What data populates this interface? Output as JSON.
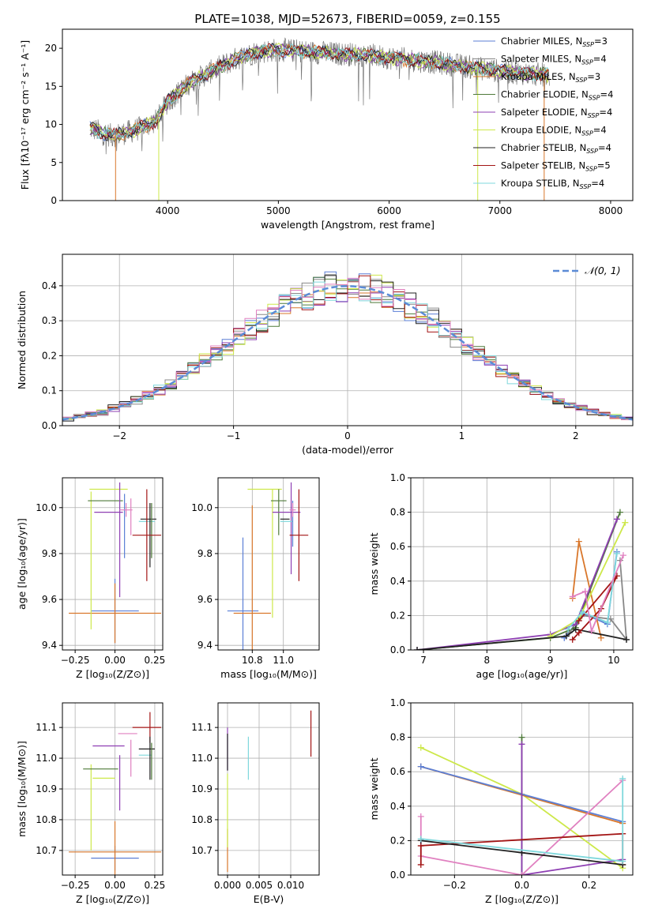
{
  "figure": {
    "title": "PLATE=1038, MJD=52673, FIBERID=0059, z=0.155",
    "model_colors": {
      "Chabrier MILES": "#5b7fd6",
      "Salpeter MILES": "#888888",
      "Kroupa MILES": "#d9772b",
      "Chabrier ELODIE": "#4f7a3a",
      "Salpeter ELODIE": "#8e3fb3",
      "Kroupa ELODIE": "#cde84a",
      "Chabrier STELIB": "#222222",
      "Salpeter STELIB": "#a31515",
      "Kroupa STELIB": "#7fd8dc",
      "Extra": "#e080c0"
    }
  },
  "chart_data": [
    {
      "id": "spectrum",
      "type": "line",
      "xlabel": "wavelength [Angstrom, rest frame]",
      "ylabel": "Flux [fλ10⁻¹⁷ erg cm⁻² s⁻¹ A⁻¹]",
      "xlim": [
        3050,
        8200
      ],
      "ylim": [
        0,
        22.5
      ],
      "xticks": [
        4000,
        5000,
        6000,
        7000,
        8000
      ],
      "yticks": [
        0,
        5,
        10,
        15,
        20
      ],
      "grid": false,
      "legend_position": "upper right",
      "continuum": [
        [
          3300,
          9.5
        ],
        [
          3500,
          8.5
        ],
        [
          3700,
          9.2
        ],
        [
          3900,
          10.5
        ],
        [
          4000,
          13.0
        ],
        [
          4200,
          15.5
        ],
        [
          4400,
          17.0
        ],
        [
          4600,
          18.5
        ],
        [
          4800,
          19.5
        ],
        [
          5000,
          19.8
        ],
        [
          5200,
          19.6
        ],
        [
          5500,
          19.3
        ],
        [
          5800,
          19.1
        ],
        [
          6100,
          18.6
        ],
        [
          6400,
          18.2
        ],
        [
          6700,
          17.6
        ],
        [
          7000,
          17.0
        ],
        [
          7300,
          16.6
        ],
        [
          7450,
          16.5
        ]
      ],
      "data_range": [
        3300,
        7450
      ],
      "series": [
        {
          "name": "Chabrier MILES, N",
          "sub": "SSP",
          "suffix": "=3",
          "color_key": "Chabrier MILES"
        },
        {
          "name": "Salpeter MILES, N",
          "sub": "SSP",
          "suffix": "=4",
          "color_key": "Salpeter MILES"
        },
        {
          "name": "Kroupa MILES, N",
          "sub": "SSP",
          "suffix": "=3",
          "color_key": "Kroupa MILES"
        },
        {
          "name": "Chabrier ELODIE, N",
          "sub": "SSP",
          "suffix": "=4",
          "color_key": "Chabrier ELODIE"
        },
        {
          "name": "Salpeter ELODIE, N",
          "sub": "SSP",
          "suffix": "=4",
          "color_key": "Salpeter ELODIE"
        },
        {
          "name": "Kroupa ELODIE, N",
          "sub": "SSP",
          "suffix": "=4",
          "color_key": "Kroupa ELODIE"
        },
        {
          "name": "Chabrier STELIB, N",
          "sub": "SSP",
          "suffix": "=4",
          "color_key": "Chabrier STELIB"
        },
        {
          "name": "Salpeter STELIB, N",
          "sub": "SSP",
          "suffix": "=5",
          "color_key": "Salpeter STELIB"
        },
        {
          "name": "Kroupa STELIB, N",
          "sub": "SSP",
          "suffix": "=4",
          "color_key": "Kroupa STELIB"
        }
      ]
    },
    {
      "id": "residuals",
      "type": "line",
      "xlabel": "(data-model)/error",
      "ylabel": "Normed distribution",
      "xlim": [
        -2.5,
        2.5
      ],
      "ylim": [
        0,
        0.49
      ],
      "xticks": [
        -2,
        -1,
        0,
        1,
        2
      ],
      "yticks": [
        0.0,
        0.1,
        0.2,
        0.3,
        0.4
      ],
      "grid": true,
      "legend": "𝒩(0, 1)",
      "legend_position": "upper right",
      "bin_width": 0.1
    },
    {
      "id": "Z_age",
      "type": "scatter",
      "xlabel": "Z [log₁₀(Z/Z⊙)]",
      "ylabel": "age  [log₁₀(age/yr)]",
      "xlim": [
        -0.33,
        0.3
      ],
      "ylim": [
        9.38,
        10.13
      ],
      "xticks": [
        -0.25,
        0.0,
        0.25
      ],
      "yticks": [
        9.4,
        9.6,
        9.8,
        10.0
      ],
      "grid": true,
      "points": [
        {
          "c": "Chabrier MILES",
          "x": 0.0,
          "xerr": 0.15,
          "y": 9.55,
          "yerr": 0.14
        },
        {
          "c": "Kroupa MILES",
          "x": 0.0,
          "xerr": 0.29,
          "y": 9.54,
          "yerr": 0.13
        },
        {
          "c": "Kroupa ELODIE",
          "x": -0.15,
          "xerr": 0.0,
          "y": 9.77,
          "yerr": 0.3
        },
        {
          "c": "Kroupa ELODIE",
          "x": -0.04,
          "xerr": 0.12,
          "y": 10.08,
          "yerr": 0.0
        },
        {
          "c": "Chabrier ELODIE",
          "x": -0.06,
          "xerr": 0.11,
          "y": 10.03,
          "yerr": 0.0
        },
        {
          "c": "Salpeter ELODIE",
          "x": 0.03,
          "xerr": 0.0,
          "y": 9.86,
          "yerr": 0.25
        },
        {
          "c": "Salpeter ELODIE",
          "x": -0.04,
          "xerr": 0.09,
          "y": 9.98,
          "yerr": 0.0
        },
        {
          "c": "Chabrier MILES",
          "x": 0.06,
          "xerr": 0.0,
          "y": 9.92,
          "yerr": 0.14
        },
        {
          "c": "Extra",
          "x": 0.07,
          "xerr": 0.04,
          "y": 9.99,
          "yerr": 0.03
        },
        {
          "c": "Extra",
          "x": 0.1,
          "xerr": 0.0,
          "y": 9.96,
          "yerr": 0.08
        },
        {
          "c": "Chabrier STELIB",
          "x": 0.21,
          "xerr": 0.05,
          "y": 9.95,
          "yerr": 0.0
        },
        {
          "c": "Kroupa STELIB",
          "x": 0.2,
          "xerr": 0.05,
          "y": 9.94,
          "yerr": 0.0
        },
        {
          "c": "Chabrier STELIB",
          "x": 0.22,
          "xerr": 0.0,
          "y": 9.88,
          "yerr": 0.14
        },
        {
          "c": "Chabrier ELODIE",
          "x": 0.23,
          "xerr": 0.0,
          "y": 9.9,
          "yerr": 0.12
        },
        {
          "c": "Salpeter STELIB",
          "x": 0.2,
          "xerr": 0.09,
          "y": 9.88,
          "yerr": 0.2
        }
      ]
    },
    {
      "id": "mass_age",
      "type": "scatter",
      "xlabel": "mass [log₁₀(M/M⊙)]",
      "ylabel": "",
      "xlim": [
        10.58,
        11.23
      ],
      "ylim": [
        9.38,
        10.13
      ],
      "xticks": [
        10.8,
        11.0
      ],
      "yticks": [
        9.4,
        9.6,
        9.8,
        10.0
      ],
      "grid": true,
      "points": [
        {
          "c": "Chabrier MILES",
          "x": 10.74,
          "xerr": 0.1,
          "y": 9.55,
          "yerr": 0.32
        },
        {
          "c": "Kroupa MILES",
          "x": 10.8,
          "xerr": 0.12,
          "y": 9.54,
          "yerr": 0.47
        },
        {
          "c": "Kroupa ELODIE",
          "x": 10.93,
          "xerr": 0.0,
          "y": 9.8,
          "yerr": 0.28
        },
        {
          "c": "Kroupa ELODIE",
          "x": 10.88,
          "xerr": 0.11,
          "y": 10.08,
          "yerr": 0.0
        },
        {
          "c": "Chabrier ELODIE",
          "x": 10.97,
          "xerr": 0.05,
          "y": 10.03,
          "yerr": 0.0
        },
        {
          "c": "Chabrier ELODIE",
          "x": 10.97,
          "xerr": 0.0,
          "y": 9.98,
          "yerr": 0.1
        },
        {
          "c": "Salpeter ELODIE",
          "x": 11.02,
          "xerr": 0.09,
          "y": 9.98,
          "yerr": 0.0
        },
        {
          "c": "Salpeter ELODIE",
          "x": 11.05,
          "xerr": 0.0,
          "y": 9.91,
          "yerr": 0.2
        },
        {
          "c": "Chabrier STELIB",
          "x": 11.01,
          "xerr": 0.03,
          "y": 9.95,
          "yerr": 0.0
        },
        {
          "c": "Kroupa STELIB",
          "x": 11.02,
          "xerr": 0.04,
          "y": 9.94,
          "yerr": 0.0
        },
        {
          "c": "Chabrier MILES",
          "x": 11.06,
          "xerr": 0.0,
          "y": 9.93,
          "yerr": 0.1
        },
        {
          "c": "Extra",
          "x": 11.06,
          "xerr": 0.02,
          "y": 9.99,
          "yerr": 0.03
        },
        {
          "c": "Salpeter STELIB",
          "x": 11.1,
          "xerr": 0.06,
          "y": 9.88,
          "yerr": 0.2
        }
      ]
    },
    {
      "id": "age_weight",
      "type": "line",
      "xlabel": "age  [log₁₀(age/yr)]",
      "ylabel": "mass weight",
      "xlim": [
        6.8,
        10.3
      ],
      "ylim": [
        0,
        1.0
      ],
      "xticks": [
        7,
        8,
        9,
        10
      ],
      "yticks": [
        0.0,
        0.2,
        0.4,
        0.6,
        0.8,
        1.0
      ],
      "grid": true,
      "series": [
        {
          "c": "Chabrier MILES",
          "points": [
            [
              9.22,
              0.07
            ],
            [
              9.53,
              0.21
            ],
            [
              9.9,
              0.15
            ],
            [
              10.05,
              0.57
            ]
          ]
        },
        {
          "c": "Salpeter MILES",
          "points": [
            [
              9.3,
              0.1
            ],
            [
              9.5,
              0.2
            ],
            [
              9.95,
              0.18
            ],
            [
              10.2,
              0.06
            ],
            [
              10.1,
              0.52
            ]
          ]
        },
        {
          "c": "Kroupa MILES",
          "points": [
            [
              9.35,
              0.3
            ],
            [
              9.45,
              0.63
            ],
            [
              9.8,
              0.07
            ]
          ]
        },
        {
          "c": "Chabrier ELODIE",
          "points": [
            [
              6.9,
              0.0
            ],
            [
              9.0,
              0.07
            ],
            [
              9.4,
              0.13
            ],
            [
              10.1,
              0.8
            ]
          ]
        },
        {
          "c": "Salpeter ELODIE",
          "points": [
            [
              6.9,
              0.0
            ],
            [
              9.0,
              0.09
            ],
            [
              9.4,
              0.15
            ],
            [
              10.05,
              0.76
            ]
          ]
        },
        {
          "c": "Kroupa ELODIE",
          "points": [
            [
              9.0,
              0.08
            ],
            [
              9.45,
              0.18
            ],
            [
              10.18,
              0.74
            ]
          ]
        },
        {
          "c": "Chabrier STELIB",
          "points": [
            [
              6.9,
              0.0
            ],
            [
              9.25,
              0.08
            ],
            [
              9.4,
              0.12
            ],
            [
              10.2,
              0.06
            ]
          ]
        },
        {
          "c": "Salpeter STELIB",
          "points": [
            [
              9.35,
              0.06
            ],
            [
              9.45,
              0.1
            ],
            [
              9.8,
              0.24
            ],
            [
              10.05,
              0.43
            ],
            [
              9.45,
              0.17
            ]
          ]
        },
        {
          "c": "Kroupa STELIB",
          "points": [
            [
              9.28,
              0.12
            ],
            [
              9.5,
              0.22
            ],
            [
              9.9,
              0.16
            ],
            [
              10.05,
              0.56
            ]
          ]
        },
        {
          "c": "Extra",
          "points": [
            [
              9.35,
              0.31
            ],
            [
              9.55,
              0.34
            ],
            [
              9.65,
              0.11
            ],
            [
              10.15,
              0.55
            ]
          ]
        }
      ]
    },
    {
      "id": "Z_mass",
      "type": "scatter",
      "xlabel": "Z [log₁₀(Z/Z⊙)]",
      "ylabel": "mass [log₁₀(M/M⊙)]",
      "xlim": [
        -0.33,
        0.3
      ],
      "ylim": [
        10.62,
        11.18
      ],
      "xticks": [
        -0.25,
        0.0,
        0.25
      ],
      "yticks": [
        10.7,
        10.8,
        10.9,
        11.0,
        11.1
      ],
      "grid": true,
      "points": [
        {
          "c": "Chabrier MILES",
          "x": 0.0,
          "xerr": 0.15,
          "y": 10.675,
          "yerr": 0.04
        },
        {
          "c": "Kroupa MILES",
          "x": 0.0,
          "xerr": 0.29,
          "y": 10.695,
          "yerr": 0.1
        },
        {
          "c": "Kroupa ELODIE",
          "x": -0.15,
          "xerr": 0.0,
          "y": 10.84,
          "yerr": 0.14
        },
        {
          "c": "Kroupa ELODIE",
          "x": -0.07,
          "xerr": 0.07,
          "y": 10.935,
          "yerr": 0.0
        },
        {
          "c": "Chabrier ELODIE",
          "x": -0.09,
          "xerr": 0.11,
          "y": 10.965,
          "yerr": 0.0
        },
        {
          "c": "Salpeter ELODIE",
          "x": 0.03,
          "xerr": 0.0,
          "y": 10.92,
          "yerr": 0.09
        },
        {
          "c": "Salpeter ELODIE",
          "x": -0.04,
          "xerr": 0.1,
          "y": 11.04,
          "yerr": 0.0
        },
        {
          "c": "Extra",
          "x": 0.08,
          "xerr": 0.06,
          "y": 11.08,
          "yerr": 0.0
        },
        {
          "c": "Extra",
          "x": 0.1,
          "xerr": 0.0,
          "y": 11.0,
          "yerr": 0.06
        },
        {
          "c": "Salpeter STELIB",
          "x": 0.2,
          "xerr": 0.09,
          "y": 11.1,
          "yerr": 0.0
        },
        {
          "c": "Salpeter STELIB",
          "x": 0.22,
          "xerr": 0.0,
          "y": 11.1,
          "yerr": 0.05
        },
        {
          "c": "Chabrier STELIB",
          "x": 0.2,
          "xerr": 0.05,
          "y": 11.03,
          "yerr": 0.0
        },
        {
          "c": "Kroupa STELIB",
          "x": 0.19,
          "xerr": 0.04,
          "y": 11.01,
          "yerr": 0.0
        },
        {
          "c": "Chabrier STELIB",
          "x": 0.22,
          "xerr": 0.0,
          "y": 11.0,
          "yerr": 0.07
        },
        {
          "c": "Chabrier ELODIE",
          "x": 0.23,
          "xerr": 0.0,
          "y": 10.99,
          "yerr": 0.06
        }
      ]
    },
    {
      "id": "ebv_mass",
      "type": "scatter",
      "xlabel": "E(B-V)",
      "ylabel": "",
      "xlim": [
        -0.0015,
        0.0145
      ],
      "ylim": [
        10.62,
        11.18
      ],
      "xticks": [
        0.0,
        0.005,
        0.01
      ],
      "xticklabels": [
        "0.000",
        "0.005",
        "0.010"
      ],
      "yticks": [
        10.7,
        10.8,
        10.9,
        11.0,
        11.1
      ],
      "grid": true,
      "points": [
        {
          "c": "Kroupa MILES",
          "x": 0.0,
          "xerr": 0.0,
          "y": 10.7,
          "yerr": 0.07
        },
        {
          "c": "Kroupa ELODIE",
          "x": 0.0,
          "xerr": 0.0,
          "y": 10.83,
          "yerr": 0.12
        },
        {
          "c": "Salpeter ELODIE",
          "x": 0.0,
          "xerr": 0.0,
          "y": 11.03,
          "yerr": 0.07
        },
        {
          "c": "Chabrier STELIB",
          "x": 0.0,
          "xerr": 0.0,
          "y": 11.02,
          "yerr": 0.06
        },
        {
          "c": "Kroupa STELIB",
          "x": 0.0033,
          "xerr": 0.0,
          "y": 11.0,
          "yerr": 0.07
        },
        {
          "c": "Salpeter STELIB",
          "x": 0.0132,
          "xerr": 0.0,
          "y": 11.08,
          "yerr": 0.075
        }
      ]
    },
    {
      "id": "Z_weight",
      "type": "line",
      "xlabel": "Z [log₁₀(Z/Z⊙)]",
      "ylabel": "mass weight",
      "xlim": [
        -0.33,
        0.33
      ],
      "ylim": [
        0,
        1.0
      ],
      "xticks": [
        -0.2,
        0.0,
        0.2
      ],
      "yticks": [
        0.0,
        0.2,
        0.4,
        0.6,
        0.8,
        1.0
      ],
      "grid": true,
      "series": [
        {
          "c": "Kroupa ELODIE",
          "points": [
            [
              -0.3,
              0.74
            ],
            [
              0.0,
              0.47
            ],
            [
              0.3,
              0.04
            ]
          ]
        },
        {
          "c": "Kroupa MILES",
          "points": [
            [
              -0.3,
              0.63
            ],
            [
              0.3,
              0.3
            ]
          ]
        },
        {
          "c": "Chabrier MILES",
          "points": [
            [
              -0.3,
              0.63
            ],
            [
              0.3,
              0.31
            ]
          ]
        },
        {
          "c": "Chabrier ELODIE",
          "points": [
            [
              0.0,
              0.0
            ],
            [
              0.0,
              0.8
            ]
          ]
        },
        {
          "c": "Salpeter ELODIE",
          "points": [
            [
              0.0,
              0.0
            ],
            [
              0.0,
              0.76
            ],
            [
              0.0,
              0.0
            ],
            [
              0.3,
              0.09
            ]
          ]
        },
        {
          "c": "Extra",
          "points": [
            [
              -0.3,
              0.34
            ],
            [
              -0.3,
              0.11
            ],
            [
              0.0,
              0.0
            ],
            [
              0.3,
              0.55
            ]
          ]
        },
        {
          "c": "Salpeter STELIB",
          "points": [
            [
              -0.3,
              0.06
            ],
            [
              -0.3,
              0.17
            ],
            [
              0.3,
              0.24
            ],
            [
              0.3,
              0.06
            ]
          ]
        },
        {
          "c": "Chabrier STELIB",
          "points": [
            [
              -0.3,
              0.2
            ],
            [
              0.0,
              0.13
            ],
            [
              0.3,
              0.06
            ]
          ]
        },
        {
          "c": "Kroupa STELIB",
          "points": [
            [
              -0.3,
              0.21
            ],
            [
              0.3,
              0.08
            ],
            [
              0.3,
              0.56
            ]
          ]
        }
      ]
    }
  ]
}
